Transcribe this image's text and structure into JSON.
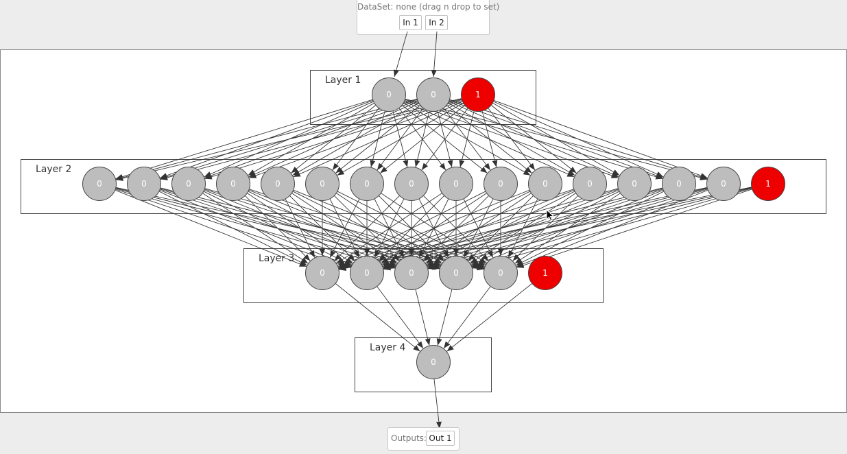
{
  "dataset": {
    "label": "DataSet: none (drag n drop to set)",
    "inputs": [
      "In 1",
      "In 2"
    ]
  },
  "layers": [
    {
      "label": "Layer 1",
      "nodes": [
        "0",
        "0",
        "1"
      ]
    },
    {
      "label": "Layer 2",
      "nodes": [
        "0",
        "0",
        "0",
        "0",
        "0",
        "0",
        "0",
        "0",
        "0",
        "0",
        "0",
        "0",
        "0",
        "0",
        "0",
        "1"
      ]
    },
    {
      "label": "Layer 3",
      "nodes": [
        "0",
        "0",
        "0",
        "0",
        "0",
        "1"
      ]
    },
    {
      "label": "Layer 4",
      "nodes": [
        "0"
      ]
    }
  ],
  "outputs": {
    "label": "Outputs:",
    "items": [
      "Out 1"
    ]
  },
  "colors": {
    "node": "#bdbdbd",
    "bias_node": "#ee0000",
    "edge": "#333333"
  }
}
